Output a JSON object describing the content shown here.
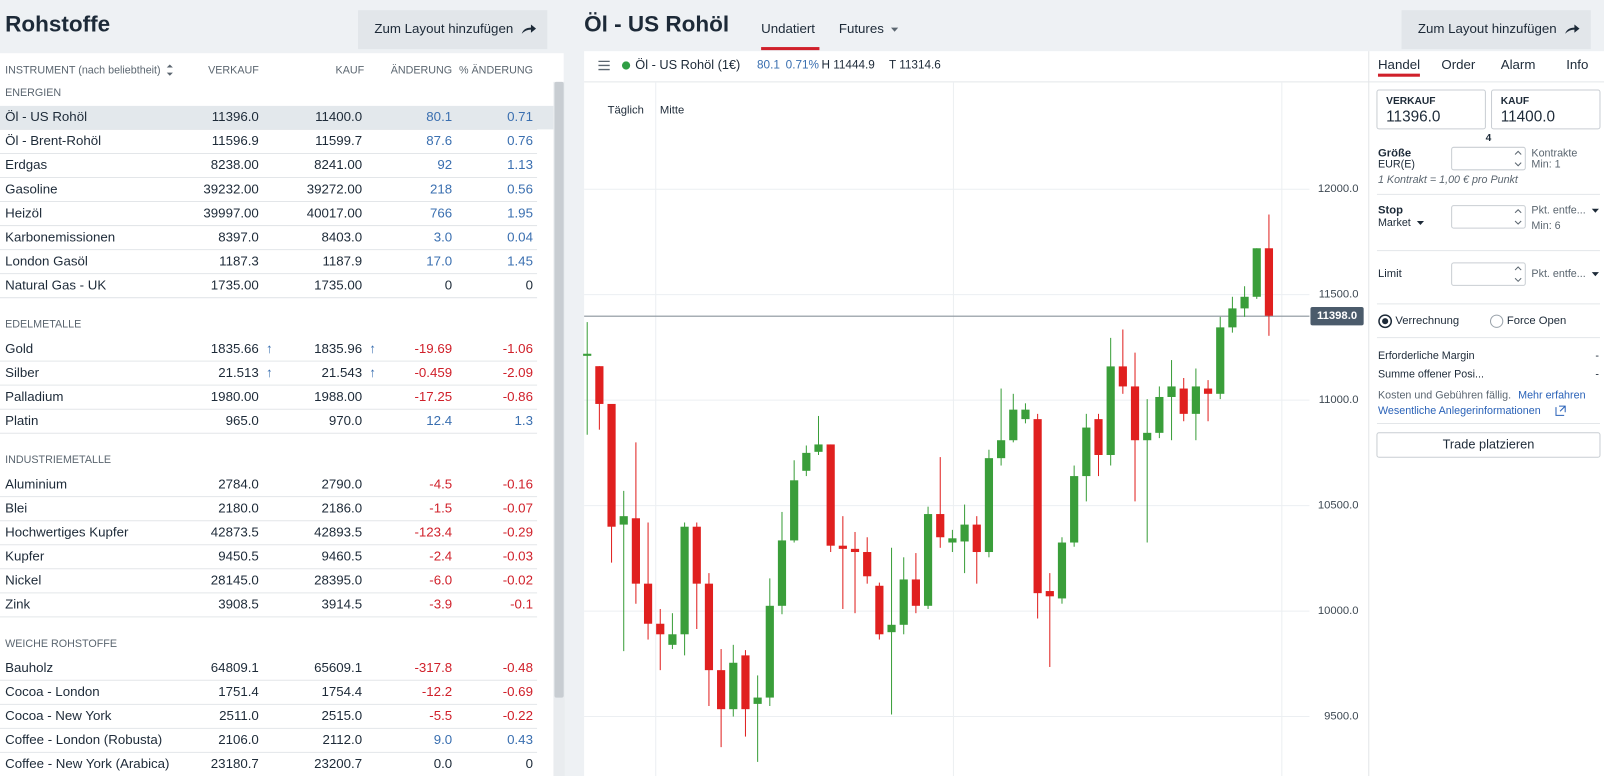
{
  "left_panel": {
    "title": "Rohstoffe",
    "button": "Zum Layout hinzufügen",
    "columns": [
      "INSTRUMENT (nach beliebtheit)",
      "VERKAUF",
      "KAUF",
      "ÄNDERUNG",
      "% ÄNDERUNG"
    ],
    "sections": [
      {
        "name": "ENERGIEN",
        "rows": [
          {
            "cells": [
              "Öl - US Rohöl",
              "11396.0",
              "11400.0",
              "80.1",
              "0.71"
            ]
          },
          {
            "cells": [
              "Öl - Brent-Rohöl",
              "11596.9",
              "11599.7",
              "87.6",
              "0.76"
            ]
          },
          {
            "cells": [
              "Erdgas",
              "8238.00",
              "8241.00",
              "92",
              "1.13"
            ]
          },
          {
            "cells": [
              "Gasoline",
              "39232.00",
              "39272.00",
              "218",
              "0.56"
            ]
          },
          {
            "cells": [
              "Heizöl",
              "39997.00",
              "40017.00",
              "766",
              "1.95"
            ]
          },
          {
            "cells": [
              "Karbonemissionen",
              "8397.0",
              "8403.0",
              "3.0",
              "0.04"
            ]
          },
          {
            "cells": [
              "London Gasöl",
              "1187.3",
              "1187.9",
              "17.0",
              "1.45"
            ]
          },
          {
            "cells": [
              "Natural Gas - UK",
              "1735.00",
              "1735.00",
              "0",
              "0"
            ]
          }
        ]
      },
      {
        "name": "EDELMETALLE",
        "rows": [
          {
            "cells": [
              "Gold",
              "1835.66",
              "1835.96",
              "-19.69",
              "-1.06"
            ],
            "trend": [
              "↑",
              "↑"
            ]
          },
          {
            "cells": [
              "Silber",
              "21.513",
              "21.543",
              "-0.459",
              "-2.09"
            ],
            "trend": [
              "↑",
              "↑"
            ]
          },
          {
            "cells": [
              "Palladium",
              "1980.00",
              "1988.00",
              "-17.25",
              "-0.86"
            ]
          },
          {
            "cells": [
              "Platin",
              "965.0",
              "970.0",
              "12.4",
              "1.3"
            ]
          }
        ]
      },
      {
        "name": "INDUSTRIEMETALLE",
        "rows": [
          {
            "cells": [
              "Aluminium",
              "2784.0",
              "2790.0",
              "-4.5",
              "-0.16"
            ]
          },
          {
            "cells": [
              "Blei",
              "2180.0",
              "2186.0",
              "-1.5",
              "-0.07"
            ]
          },
          {
            "cells": [
              "Hochwertiges Kupfer",
              "42873.5",
              "42893.5",
              "-123.4",
              "-0.29"
            ]
          },
          {
            "cells": [
              "Kupfer",
              "9450.5",
              "9460.5",
              "-2.4",
              "-0.03"
            ]
          },
          {
            "cells": [
              "Nickel",
              "28145.0",
              "28395.0",
              "-6.0",
              "-0.02"
            ]
          },
          {
            "cells": [
              "Zink",
              "3908.5",
              "3914.5",
              "-3.9",
              "-0.1"
            ]
          }
        ]
      },
      {
        "name": "WEICHE ROHSTOFFE",
        "rows": [
          {
            "cells": [
              "Bauholz",
              "64809.1",
              "65609.1",
              "-317.8",
              "-0.48"
            ]
          },
          {
            "cells": [
              "Cocoa - London",
              "1751.4",
              "1754.4",
              "-12.2",
              "-0.69"
            ]
          },
          {
            "cells": [
              "Cocoa - New York",
              "2511.0",
              "2515.0",
              "-5.5",
              "-0.22"
            ]
          },
          {
            "cells": [
              "Coffee - London (Robusta)",
              "2106.0",
              "2112.0",
              "9.0",
              "0.43"
            ]
          },
          {
            "cells": [
              "Coffee - New York (Arabica)",
              "23180.7",
              "23200.7",
              "0.0",
              "0"
            ]
          }
        ]
      }
    ]
  },
  "header": {
    "title": "Öl - US Rohöl",
    "tabs": [
      "Undatiert",
      "Futures"
    ],
    "button": "Zum Layout hinzufügen"
  },
  "chart_header": {
    "instrument": "Öl - US Rohöl (1€)",
    "change": "80.1",
    "change_pct": "0.71%",
    "high": "H 11444.9",
    "low": "T 11314.6",
    "interval": "Täglich",
    "price_type": "Mitte"
  },
  "chart_data": {
    "type": "candlestick",
    "up_color": "#3a9e3a",
    "down_color": "#e0201f",
    "grid": true,
    "open": [
      11210,
      11161,
      10982,
      10410,
      10440,
      10130,
      9940,
      9840,
      9890,
      10400,
      10130,
      9720,
      9535,
      9790,
      9560,
      9590,
      10025,
      10335,
      10665,
      10755,
      10790,
      10310,
      10295,
      10280,
      10120,
      9900,
      9935,
      10150,
      10025,
      10460,
      10325,
      10330,
      10410,
      10280,
      10725,
      10810,
      10910,
      10910,
      10095,
      10060,
      10325,
      10640,
      10910,
      10740,
      11160,
      11065,
      10810,
      10845,
      11015,
      11055,
      10935,
      11055,
      11030,
      11345,
      11435,
      11490,
      11720
    ],
    "high": [
      11370,
      11161,
      10982,
      10570,
      10800,
      10420,
      10010,
      9990,
      10420,
      10420,
      10180,
      9820,
      9840,
      9815,
      9695,
      10155,
      10470,
      10715,
      10785,
      10925,
      10790,
      10450,
      10375,
      10350,
      10135,
      10300,
      10255,
      10275,
      10495,
      10730,
      10385,
      10505,
      10450,
      10765,
      11055,
      11030,
      10985,
      10935,
      10180,
      10350,
      10690,
      10935,
      10935,
      11295,
      11335,
      11225,
      11005,
      11065,
      11190,
      11105,
      11150,
      11095,
      11395,
      11490,
      11540,
      11720,
      11880
    ],
    "low": [
      10836,
      10860,
      10230,
      9810,
      10035,
      9865,
      9720,
      9820,
      9790,
      9915,
      9550,
      9355,
      9500,
      9405,
      9285,
      9550,
      9985,
      10325,
      10640,
      10740,
      10280,
      10010,
      9990,
      10130,
      9865,
      9510,
      9890,
      9990,
      10010,
      10300,
      10280,
      10180,
      10130,
      10255,
      10690,
      10800,
      10890,
      9965,
      9735,
      10035,
      10305,
      10520,
      10640,
      10690,
      11030,
      10520,
      10325,
      10820,
      10810,
      10900,
      10810,
      10900,
      11005,
      11320,
      11395,
      11480,
      11305
    ],
    "close": [
      11220,
      10982,
      10400,
      10450,
      10130,
      9940,
      9890,
      9890,
      10400,
      10130,
      9720,
      9535,
      9755,
      9535,
      9590,
      10025,
      10335,
      10620,
      10750,
      10790,
      10310,
      10295,
      10280,
      10165,
      9890,
      9935,
      10150,
      10025,
      10460,
      10350,
      10345,
      10410,
      10280,
      10725,
      10810,
      10955,
      10955,
      10085,
      10070,
      10325,
      10640,
      10870,
      10740,
      11160,
      11065,
      10810,
      10845,
      11015,
      11065,
      10935,
      11065,
      11030,
      11345,
      11435,
      11490,
      11720,
      11400
    ],
    "ylim": [
      9216,
      12509
    ],
    "yticks": [
      {
        "value": 9500,
        "label": "9500.0"
      },
      {
        "value": 10000,
        "label": "10000.0"
      },
      {
        "value": 10500,
        "label": "10500.0"
      },
      {
        "value": 11000,
        "label": "11000.0"
      },
      {
        "value": 11500,
        "label": "11500.0"
      },
      {
        "value": 12000,
        "label": "12000.0"
      }
    ],
    "price_line": {
      "value": 11398,
      "label": "11398.0"
    }
  },
  "trade_panel": {
    "tabs": [
      "Handel",
      "Order",
      "Alarm",
      "Info"
    ],
    "sell_label": "VERKAUF",
    "sell": "11396.0",
    "buy_label": "KAUF",
    "buy": "11400.0",
    "spread": "4",
    "size_label": "Größe",
    "size_unit": "EUR(E)",
    "size_hint": "Kontrakte",
    "size_min": "Min: 1",
    "contract_note": "1 Kontrakt = 1,00 € pro Punkt",
    "stop_label": "Stop",
    "stop_type": "Market",
    "stop_hint": "Pkt. entfe...",
    "stop_min": "Min: 6",
    "limit_label": "Limit",
    "limit_hint": "Pkt. entfe...",
    "radio_1": "Verrechnung",
    "radio_2": "Force Open",
    "margin_label": "Erforderliche Margin",
    "margin_value": "-",
    "positions_label": "Summe offener Posi...",
    "positions_value": "-",
    "costs_text": "Kosten und Gebühren fällig.",
    "costs_link": "Mehr erfahren",
    "kid_link": "Wesentliche Anlegerinformationen",
    "submit": "Trade platzieren"
  }
}
